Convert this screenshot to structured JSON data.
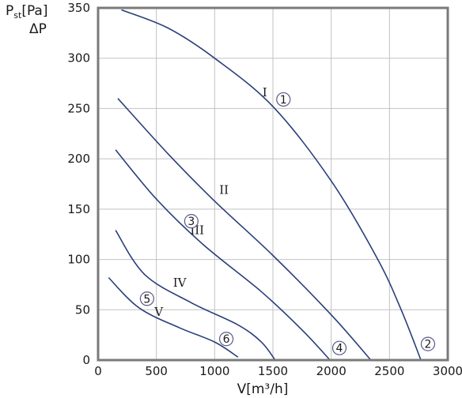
{
  "chart_data": {
    "type": "line",
    "x_unit_label": "V[m³/h]",
    "y_label_main": "P",
    "y_label_sub": "st",
    "y_label_unit": "[Pa]",
    "y_label_second": "ΔP",
    "xlim": [
      0,
      3000
    ],
    "ylim": [
      0,
      350
    ],
    "x_ticks": [
      0,
      500,
      1000,
      1500,
      2000,
      2500,
      3000
    ],
    "y_ticks": [
      0,
      50,
      100,
      150,
      200,
      250,
      300,
      350
    ],
    "grid": true,
    "series_color": "#2a3f7a",
    "series": [
      {
        "label": "I",
        "points": [
          [
            200,
            348
          ],
          [
            600,
            330
          ],
          [
            1000,
            300
          ],
          [
            1500,
            252
          ],
          [
            2000,
            178
          ],
          [
            2400,
            100
          ],
          [
            2600,
            50
          ],
          [
            2770,
            0
          ]
        ]
      },
      {
        "label": "II",
        "points": [
          [
            170,
            260
          ],
          [
            600,
            205
          ],
          [
            1000,
            158
          ],
          [
            1500,
            104
          ],
          [
            2000,
            45
          ],
          [
            2340,
            0
          ]
        ]
      },
      {
        "label": "III",
        "points": [
          [
            150,
            209
          ],
          [
            500,
            160
          ],
          [
            900,
            115
          ],
          [
            1400,
            68
          ],
          [
            1750,
            30
          ],
          [
            1990,
            0
          ]
        ]
      },
      {
        "label": "IV",
        "points": [
          [
            150,
            129
          ],
          [
            400,
            85
          ],
          [
            800,
            57
          ],
          [
            1200,
            35
          ],
          [
            1400,
            18
          ],
          [
            1520,
            0
          ]
        ]
      },
      {
        "label": "V",
        "points": [
          [
            90,
            82
          ],
          [
            350,
            52
          ],
          [
            700,
            32
          ],
          [
            1000,
            18
          ],
          [
            1200,
            3
          ]
        ]
      }
    ],
    "curve_labels": [
      {
        "text": "I",
        "x": 1430,
        "y": 262
      },
      {
        "text": "II",
        "x": 1080,
        "y": 165
      },
      {
        "text": "III",
        "x": 850,
        "y": 125
      },
      {
        "text": "IV",
        "x": 700,
        "y": 73
      },
      {
        "text": "V",
        "x": 520,
        "y": 44
      }
    ],
    "markers": [
      {
        "text": "1",
        "x": 1590,
        "y": 259
      },
      {
        "text": "2",
        "x": 2830,
        "y": 16
      },
      {
        "text": "3",
        "x": 800,
        "y": 138
      },
      {
        "text": "4",
        "x": 2070,
        "y": 12
      },
      {
        "text": "5",
        "x": 420,
        "y": 61
      },
      {
        "text": "6",
        "x": 1100,
        "y": 21
      }
    ]
  }
}
